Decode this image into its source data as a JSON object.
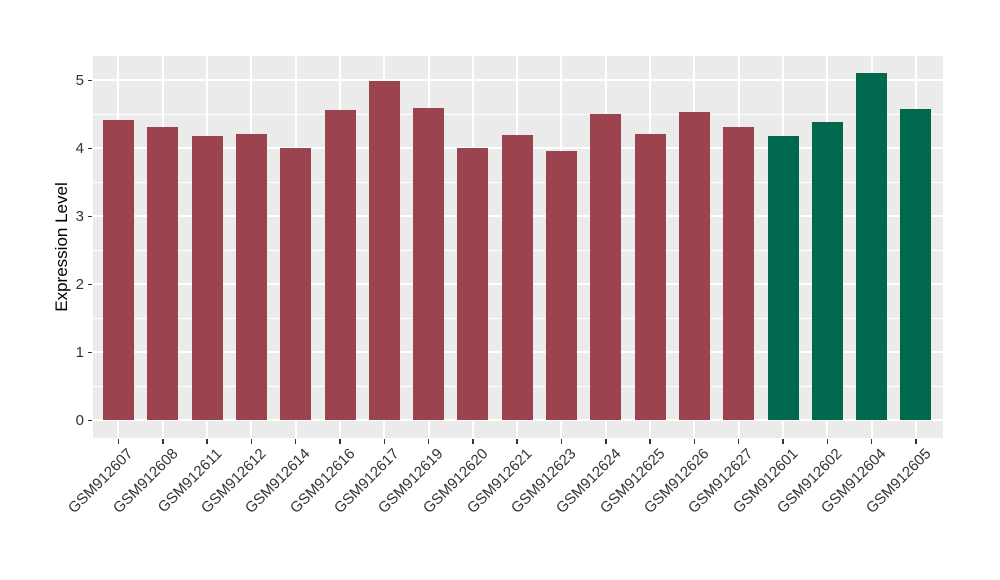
{
  "chart_data": {
    "type": "bar",
    "title": "",
    "xlabel": "",
    "ylabel": "Expression Level",
    "categories": [
      "GSM912607",
      "GSM912608",
      "GSM912611",
      "GSM912612",
      "GSM912614",
      "GSM912616",
      "GSM912617",
      "GSM912619",
      "GSM912620",
      "GSM912621",
      "GSM912623",
      "GSM912624",
      "GSM912625",
      "GSM912626",
      "GSM912627",
      "GSM912601",
      "GSM912602",
      "GSM912604",
      "GSM912605"
    ],
    "values": [
      4.42,
      4.32,
      4.18,
      4.21,
      4.0,
      4.56,
      4.99,
      4.6,
      4.01,
      4.2,
      3.96,
      4.5,
      4.21,
      4.53,
      4.31,
      4.18,
      4.39,
      5.1,
      4.58
    ],
    "bar_colors": [
      "#9C4350",
      "#9C4350",
      "#9C4350",
      "#9C4350",
      "#9C4350",
      "#9C4350",
      "#9C4350",
      "#9C4350",
      "#9C4350",
      "#9C4350",
      "#9C4350",
      "#9C4350",
      "#9C4350",
      "#9C4350",
      "#9C4350",
      "#00684C",
      "#00684C",
      "#00684C",
      "#00684C"
    ],
    "group_colors": {
      "group_1": "#9C4350",
      "group_2": "#00684C"
    },
    "yticks": [
      0,
      1,
      2,
      3,
      4,
      5
    ],
    "ylim": [
      0,
      5.35
    ],
    "legend_position": "none",
    "grid": {
      "horizontal_major": true,
      "horizontal_minor": true,
      "vertical_major": true,
      "vertical_minor": false
    },
    "panel_background": "#EBEBEB",
    "grid_color": "#FFFFFF",
    "axis_text_color": "#333333",
    "x_label_angle_deg": 45
  }
}
